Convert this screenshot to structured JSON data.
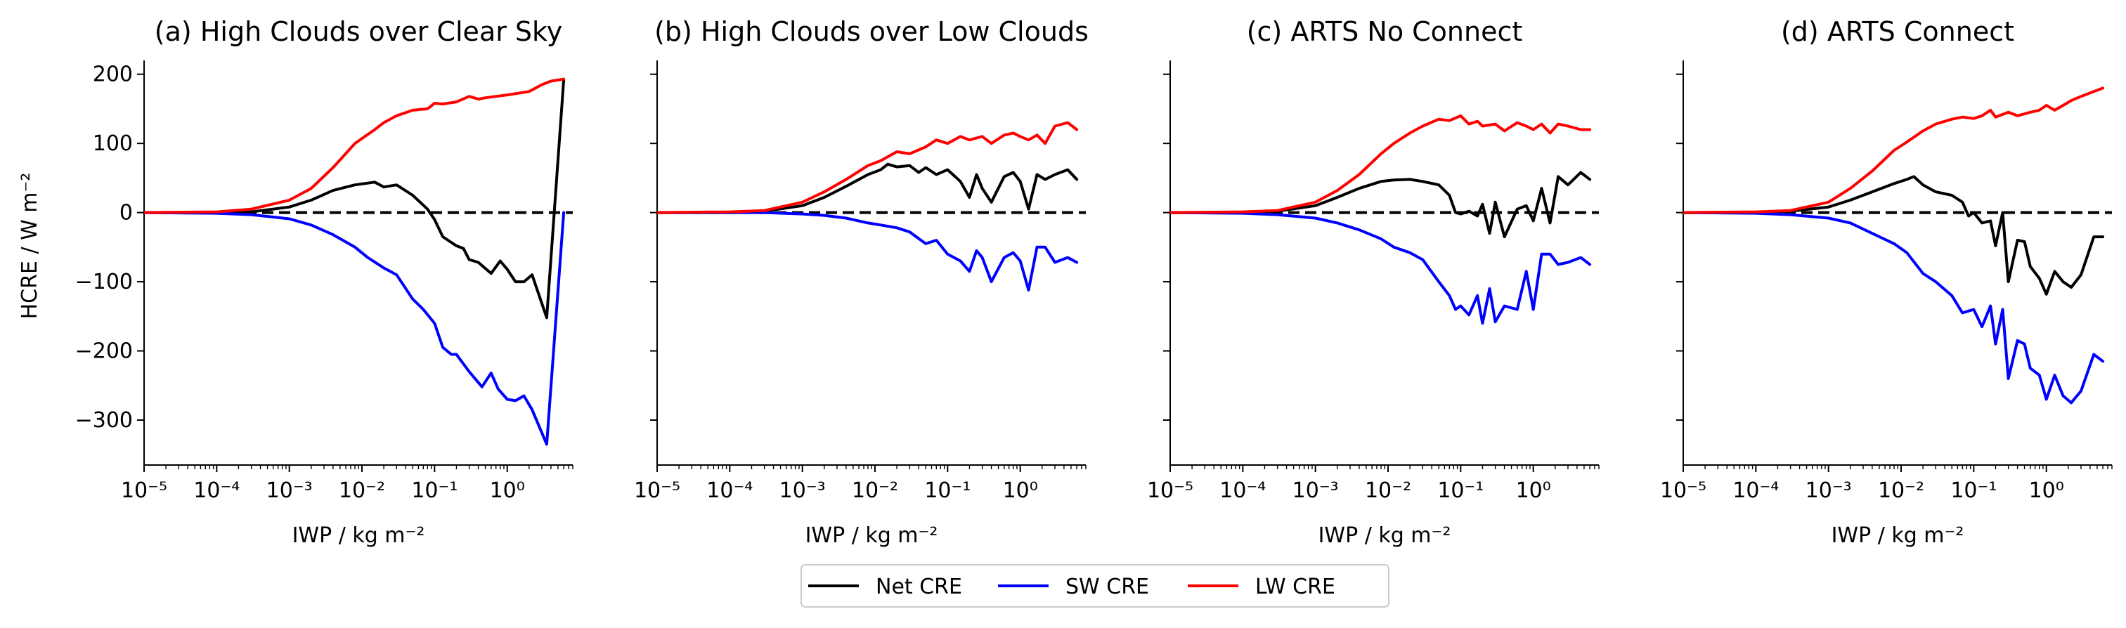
{
  "figure": {
    "ylabel": "HCRE / W m⁻²",
    "xlabel": "IWP / kg m⁻²",
    "zero_line_color": "#000000",
    "xticks": [
      {
        "exp": -5,
        "label": "10⁻⁵"
      },
      {
        "exp": -4,
        "label": "10⁻⁴"
      },
      {
        "exp": -3,
        "label": "10⁻³"
      },
      {
        "exp": -2,
        "label": "10⁻²"
      },
      {
        "exp": -1,
        "label": "10⁻¹"
      },
      {
        "exp": 0,
        "label": "10⁰"
      }
    ],
    "yticks": [
      {
        "value": 200,
        "label": "200"
      },
      {
        "value": 100,
        "label": "100"
      },
      {
        "value": 0,
        "label": "0"
      },
      {
        "value": -100,
        "label": "−100"
      },
      {
        "value": -200,
        "label": "−200"
      },
      {
        "value": -300,
        "label": "−300"
      }
    ],
    "legend": {
      "placement": "bottom-center",
      "entries": [
        {
          "label": "Net CRE",
          "color": "#000000"
        },
        {
          "label": "SW CRE",
          "color": "#0000ff"
        },
        {
          "label": "LW CRE",
          "color": "#ff0000"
        }
      ]
    }
  },
  "chart_data": [
    {
      "type": "line",
      "title": "(a) High Clouds over Clear Sky",
      "x_scale": "log",
      "xlim": [
        1e-05,
        8
      ],
      "ylim": [
        -365,
        220
      ],
      "grid": false,
      "series": [
        {
          "name": "Net CRE",
          "color": "#000000",
          "x": [
            1e-05,
            0.0001,
            0.0003,
            0.001,
            0.002,
            0.004,
            0.008,
            0.015,
            0.02,
            0.03,
            0.05,
            0.08,
            0.1,
            0.13,
            0.2,
            0.25,
            0.3,
            0.4,
            0.6,
            0.8,
            1.0,
            1.3,
            1.7,
            2.2,
            3.5,
            6.0
          ],
          "y": [
            0,
            0,
            1,
            8,
            18,
            32,
            40,
            44,
            37,
            40,
            25,
            5,
            -10,
            -35,
            -48,
            -52,
            -68,
            -72,
            -88,
            -70,
            -82,
            -100,
            -100,
            -90,
            -152,
            192
          ]
        },
        {
          "name": "SW CRE",
          "color": "#0000ff",
          "x": [
            1e-05,
            0.0001,
            0.0003,
            0.001,
            0.002,
            0.004,
            0.008,
            0.012,
            0.02,
            0.03,
            0.05,
            0.07,
            0.1,
            0.13,
            0.17,
            0.2,
            0.3,
            0.45,
            0.6,
            0.75,
            1.0,
            1.3,
            1.7,
            2.2,
            3.5,
            6.0
          ],
          "y": [
            0,
            -1,
            -3,
            -9,
            -18,
            -32,
            -50,
            -65,
            -80,
            -90,
            -125,
            -140,
            -160,
            -195,
            -205,
            -205,
            -230,
            -252,
            -232,
            -255,
            -270,
            -272,
            -265,
            -285,
            -335,
            0
          ]
        },
        {
          "name": "LW CRE",
          "color": "#ff0000",
          "x": [
            1e-05,
            0.0001,
            0.0003,
            0.001,
            0.002,
            0.004,
            0.008,
            0.015,
            0.02,
            0.03,
            0.05,
            0.08,
            0.1,
            0.13,
            0.2,
            0.3,
            0.4,
            0.5,
            0.7,
            1.0,
            1.5,
            2.0,
            3.0,
            4.0,
            6.0
          ],
          "y": [
            0,
            1,
            5,
            18,
            35,
            65,
            100,
            120,
            130,
            140,
            148,
            150,
            158,
            157,
            160,
            168,
            164,
            166,
            168,
            170,
            173,
            175,
            185,
            190,
            193
          ]
        }
      ]
    },
    {
      "type": "line",
      "title": "(b) High Clouds over Low Clouds",
      "x_scale": "log",
      "xlim": [
        1e-05,
        8
      ],
      "ylim": [
        -365,
        220
      ],
      "grid": false,
      "series": [
        {
          "name": "Net CRE",
          "color": "#000000",
          "x": [
            1e-05,
            0.0001,
            0.0003,
            0.001,
            0.002,
            0.004,
            0.008,
            0.012,
            0.015,
            0.02,
            0.03,
            0.04,
            0.05,
            0.07,
            0.1,
            0.15,
            0.2,
            0.25,
            0.3,
            0.4,
            0.6,
            0.8,
            1.0,
            1.3,
            1.7,
            2.2,
            3.0,
            4.5,
            6.0
          ],
          "y": [
            0,
            0,
            2,
            10,
            22,
            38,
            55,
            62,
            70,
            66,
            68,
            58,
            65,
            55,
            62,
            45,
            22,
            55,
            35,
            15,
            52,
            58,
            45,
            5,
            55,
            48,
            55,
            62,
            48
          ]
        },
        {
          "name": "SW CRE",
          "color": "#0000ff",
          "x": [
            1e-05,
            0.0001,
            0.0003,
            0.001,
            0.002,
            0.004,
            0.008,
            0.012,
            0.02,
            0.03,
            0.05,
            0.07,
            0.1,
            0.15,
            0.2,
            0.25,
            0.3,
            0.4,
            0.6,
            0.8,
            1.0,
            1.3,
            1.7,
            2.2,
            3.0,
            4.5,
            6.0
          ],
          "y": [
            0,
            0,
            0,
            -2,
            -4,
            -8,
            -15,
            -18,
            -22,
            -28,
            -45,
            -40,
            -60,
            -70,
            -85,
            -55,
            -65,
            -100,
            -65,
            -58,
            -70,
            -112,
            -50,
            -50,
            -72,
            -65,
            -72
          ]
        },
        {
          "name": "LW CRE",
          "color": "#ff0000",
          "x": [
            1e-05,
            0.0001,
            0.0003,
            0.001,
            0.002,
            0.004,
            0.008,
            0.012,
            0.02,
            0.03,
            0.05,
            0.07,
            0.1,
            0.15,
            0.2,
            0.3,
            0.4,
            0.6,
            0.8,
            1.0,
            1.3,
            1.7,
            2.2,
            3.0,
            4.5,
            6.0
          ],
          "y": [
            0,
            1,
            3,
            15,
            30,
            48,
            68,
            75,
            88,
            85,
            95,
            105,
            100,
            110,
            105,
            110,
            100,
            112,
            115,
            110,
            105,
            112,
            100,
            125,
            130,
            120
          ]
        }
      ]
    },
    {
      "type": "line",
      "title": "(c) ARTS No Connect",
      "x_scale": "log",
      "xlim": [
        1e-05,
        8
      ],
      "ylim": [
        -365,
        220
      ],
      "grid": false,
      "series": [
        {
          "name": "Net CRE",
          "color": "#000000",
          "x": [
            1e-05,
            0.0001,
            0.0003,
            0.001,
            0.002,
            0.004,
            0.008,
            0.012,
            0.02,
            0.03,
            0.05,
            0.07,
            0.085,
            0.1,
            0.13,
            0.17,
            0.2,
            0.25,
            0.3,
            0.4,
            0.6,
            0.8,
            1.0,
            1.3,
            1.7,
            2.2,
            3.0,
            4.5,
            6.0
          ],
          "y": [
            0,
            0,
            2,
            10,
            22,
            35,
            45,
            47,
            48,
            45,
            40,
            25,
            0,
            -2,
            2,
            -5,
            12,
            -30,
            15,
            -35,
            5,
            10,
            -12,
            35,
            -15,
            52,
            40,
            58,
            48
          ]
        },
        {
          "name": "SW CRE",
          "color": "#0000ff",
          "x": [
            1e-05,
            0.0001,
            0.0003,
            0.001,
            0.002,
            0.004,
            0.008,
            0.012,
            0.02,
            0.03,
            0.05,
            0.07,
            0.085,
            0.1,
            0.13,
            0.17,
            0.2,
            0.25,
            0.3,
            0.4,
            0.6,
            0.8,
            1.0,
            1.3,
            1.7,
            2.2,
            3.0,
            4.5,
            6.0
          ],
          "y": [
            0,
            -1,
            -3,
            -8,
            -15,
            -25,
            -38,
            -50,
            -58,
            -68,
            -100,
            -120,
            -140,
            -135,
            -148,
            -120,
            -160,
            -110,
            -158,
            -135,
            -140,
            -85,
            -140,
            -60,
            -60,
            -75,
            -72,
            -65,
            -75
          ]
        },
        {
          "name": "LW CRE",
          "color": "#ff0000",
          "x": [
            1e-05,
            0.0001,
            0.0003,
            0.001,
            0.002,
            0.004,
            0.008,
            0.012,
            0.02,
            0.03,
            0.05,
            0.07,
            0.1,
            0.13,
            0.17,
            0.2,
            0.3,
            0.4,
            0.6,
            0.8,
            1.0,
            1.3,
            1.7,
            2.2,
            3.0,
            4.5,
            6.0
          ],
          "y": [
            0,
            1,
            3,
            15,
            32,
            55,
            85,
            100,
            115,
            125,
            135,
            133,
            140,
            128,
            132,
            125,
            128,
            118,
            130,
            125,
            120,
            128,
            115,
            128,
            125,
            120,
            120
          ]
        }
      ]
    },
    {
      "type": "line",
      "title": "(d) ARTS Connect",
      "x_scale": "log",
      "xlim": [
        1e-05,
        8
      ],
      "ylim": [
        -365,
        220
      ],
      "grid": false,
      "series": [
        {
          "name": "Net CRE",
          "color": "#000000",
          "x": [
            1e-05,
            0.0001,
            0.0003,
            0.001,
            0.002,
            0.004,
            0.008,
            0.012,
            0.015,
            0.02,
            0.03,
            0.05,
            0.07,
            0.085,
            0.1,
            0.13,
            0.17,
            0.2,
            0.25,
            0.3,
            0.4,
            0.5,
            0.6,
            0.8,
            1.0,
            1.3,
            1.7,
            2.2,
            3.0,
            4.5,
            6.0
          ],
          "y": [
            0,
            0,
            2,
            8,
            18,
            30,
            42,
            48,
            52,
            40,
            30,
            25,
            15,
            -5,
            0,
            -15,
            -12,
            -48,
            0,
            -100,
            -40,
            -42,
            -78,
            -95,
            -118,
            -85,
            -100,
            -108,
            -90,
            -35,
            -35
          ]
        },
        {
          "name": "SW CRE",
          "color": "#0000ff",
          "x": [
            1e-05,
            0.0001,
            0.0003,
            0.001,
            0.002,
            0.004,
            0.008,
            0.012,
            0.02,
            0.03,
            0.05,
            0.07,
            0.1,
            0.13,
            0.17,
            0.2,
            0.25,
            0.3,
            0.4,
            0.5,
            0.6,
            0.8,
            1.0,
            1.3,
            1.7,
            2.2,
            3.0,
            4.5,
            6.0
          ],
          "y": [
            0,
            -1,
            -3,
            -8,
            -15,
            -30,
            -45,
            -58,
            -88,
            -100,
            -120,
            -145,
            -140,
            -165,
            -135,
            -190,
            -140,
            -240,
            -185,
            -190,
            -225,
            -235,
            -270,
            -235,
            -265,
            -275,
            -258,
            -205,
            -215
          ]
        },
        {
          "name": "LW CRE",
          "color": "#ff0000",
          "x": [
            1e-05,
            0.0001,
            0.0003,
            0.001,
            0.002,
            0.004,
            0.008,
            0.012,
            0.02,
            0.03,
            0.05,
            0.07,
            0.1,
            0.13,
            0.17,
            0.2,
            0.3,
            0.4,
            0.6,
            0.8,
            1.0,
            1.3,
            1.7,
            2.2,
            3.0,
            4.5,
            6.0
          ],
          "y": [
            0,
            1,
            3,
            15,
            35,
            60,
            90,
            102,
            118,
            128,
            135,
            138,
            136,
            140,
            148,
            138,
            145,
            140,
            145,
            148,
            155,
            148,
            155,
            162,
            168,
            175,
            180
          ]
        }
      ]
    }
  ]
}
